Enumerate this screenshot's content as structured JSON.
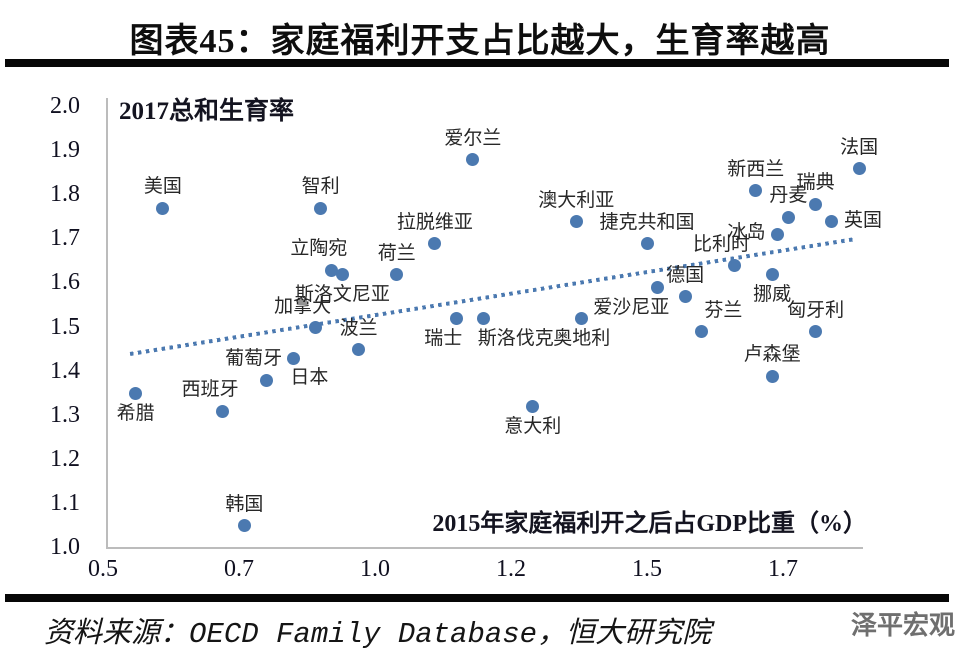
{
  "page": {
    "title": "图表45：家庭福利开支占比越大，生育率越高",
    "source": {
      "prefix": "资料来源：",
      "dataset": "OECD Family Database",
      "suffix": "，恒大研究院"
    },
    "watermark": "泽平宏观"
  },
  "chart_data": {
    "type": "scatter",
    "title": "图表45：家庭福利开支占比越大，生育率越高",
    "x_axis_label": "2015年家庭福利开之后占GDP比重（%）",
    "y_axis_label": "2017总和生育率",
    "x_tick_labels": [
      "0.5",
      "0.7",
      "1.0",
      "1.2",
      "1.5",
      "1.7"
    ],
    "y_tick_labels": [
      "2.0",
      "1.9",
      "1.8",
      "1.7",
      "1.6",
      "1.5",
      "1.4",
      "1.3",
      "1.2",
      "1.1",
      "1.0"
    ],
    "y_range": [
      1.0,
      2.0
    ],
    "x_range": [
      0.5,
      1.95
    ],
    "grid": false,
    "legend": false,
    "dot_color": "#4b79b0",
    "points": [
      {
        "id": "usa",
        "label": "美国",
        "x": 0.61,
        "y": 1.77,
        "lp": "a"
      },
      {
        "id": "greece",
        "label": "希腊",
        "x": 0.56,
        "y": 1.35,
        "lp": "b"
      },
      {
        "id": "spain",
        "label": "西班牙",
        "x": 0.72,
        "y": 1.31,
        "lp": "al"
      },
      {
        "id": "portugal",
        "label": "葡萄牙",
        "x": 0.8,
        "y": 1.38,
        "lp": "al"
      },
      {
        "id": "japan",
        "label": "日本",
        "x": 0.85,
        "y": 1.43,
        "lp": "br"
      },
      {
        "id": "south-korea",
        "label": "韩国",
        "x": 0.76,
        "y": 1.05,
        "lp": "a"
      },
      {
        "id": "canada",
        "label": "加拿大",
        "x": 0.89,
        "y": 1.5,
        "lp": "al"
      },
      {
        "id": "chile",
        "label": "智利",
        "x": 0.9,
        "y": 1.77,
        "lp": "a"
      },
      {
        "id": "lithuania",
        "label": "立陶宛",
        "x": 0.92,
        "y": 1.63,
        "lp": "al"
      },
      {
        "id": "slovenia",
        "label": "斯洛文尼亚",
        "x": 0.94,
        "y": 1.62,
        "lp": "b"
      },
      {
        "id": "poland",
        "label": "波兰",
        "x": 0.97,
        "y": 1.45,
        "lp": "a"
      },
      {
        "id": "netherlands",
        "label": "荷兰",
        "x": 1.04,
        "y": 1.62,
        "lp": "a"
      },
      {
        "id": "latvia",
        "label": "拉脱维亚",
        "x": 1.11,
        "y": 1.69,
        "lp": "a"
      },
      {
        "id": "ireland",
        "label": "爱尔兰",
        "x": 1.18,
        "y": 1.88,
        "lp": "a"
      },
      {
        "id": "switzerland",
        "label": "瑞士",
        "x": 1.15,
        "y": 1.52,
        "lp": "bl"
      },
      {
        "id": "slovakia",
        "label": "斯洛伐克",
        "x": 1.2,
        "y": 1.52,
        "lp": "br"
      },
      {
        "id": "italy",
        "label": "意大利",
        "x": 1.29,
        "y": 1.32,
        "lp": "b"
      },
      {
        "id": "austria",
        "label": "奥地利",
        "x": 1.38,
        "y": 1.52,
        "lp": "b"
      },
      {
        "id": "australia",
        "label": "澳大利亚",
        "x": 1.37,
        "y": 1.74,
        "lp": "a"
      },
      {
        "id": "estonia",
        "label": "爱沙尼亚",
        "x": 1.52,
        "y": 1.59,
        "lp": "bl"
      },
      {
        "id": "czech-republic",
        "label": "捷克共和国",
        "x": 1.5,
        "y": 1.69,
        "lp": "a"
      },
      {
        "id": "germany",
        "label": "德国",
        "x": 1.57,
        "y": 1.57,
        "lp": "a"
      },
      {
        "id": "belgium",
        "label": "比利时",
        "x": 1.66,
        "y": 1.64,
        "lp": "al"
      },
      {
        "id": "finland",
        "label": "芬兰",
        "x": 1.6,
        "y": 1.49,
        "lp": "ar"
      },
      {
        "id": "norway",
        "label": "挪威",
        "x": 1.73,
        "y": 1.62,
        "lp": "b"
      },
      {
        "id": "iceland",
        "label": "冰岛",
        "x": 1.74,
        "y": 1.71,
        "lp": "l"
      },
      {
        "id": "new-zealand",
        "label": "新西兰",
        "x": 1.7,
        "y": 1.81,
        "lp": "a"
      },
      {
        "id": "denmark",
        "label": "丹麦",
        "x": 1.76,
        "y": 1.75,
        "lp": "a"
      },
      {
        "id": "sweden",
        "label": "瑞典",
        "x": 1.81,
        "y": 1.78,
        "lp": "a"
      },
      {
        "id": "uk",
        "label": "英国",
        "x": 1.84,
        "y": 1.74,
        "lp": "r"
      },
      {
        "id": "france",
        "label": "法国",
        "x": 1.89,
        "y": 1.86,
        "lp": "a"
      },
      {
        "id": "hungary",
        "label": "匈牙利",
        "x": 1.81,
        "y": 1.49,
        "lp": "a"
      },
      {
        "id": "luxembourg",
        "label": "卢森堡",
        "x": 1.73,
        "y": 1.39,
        "lp": "a"
      }
    ],
    "trendline": {
      "style": "dotted",
      "x1": 0.55,
      "y1": 1.44,
      "x2": 1.88,
      "y2": 1.7
    }
  }
}
